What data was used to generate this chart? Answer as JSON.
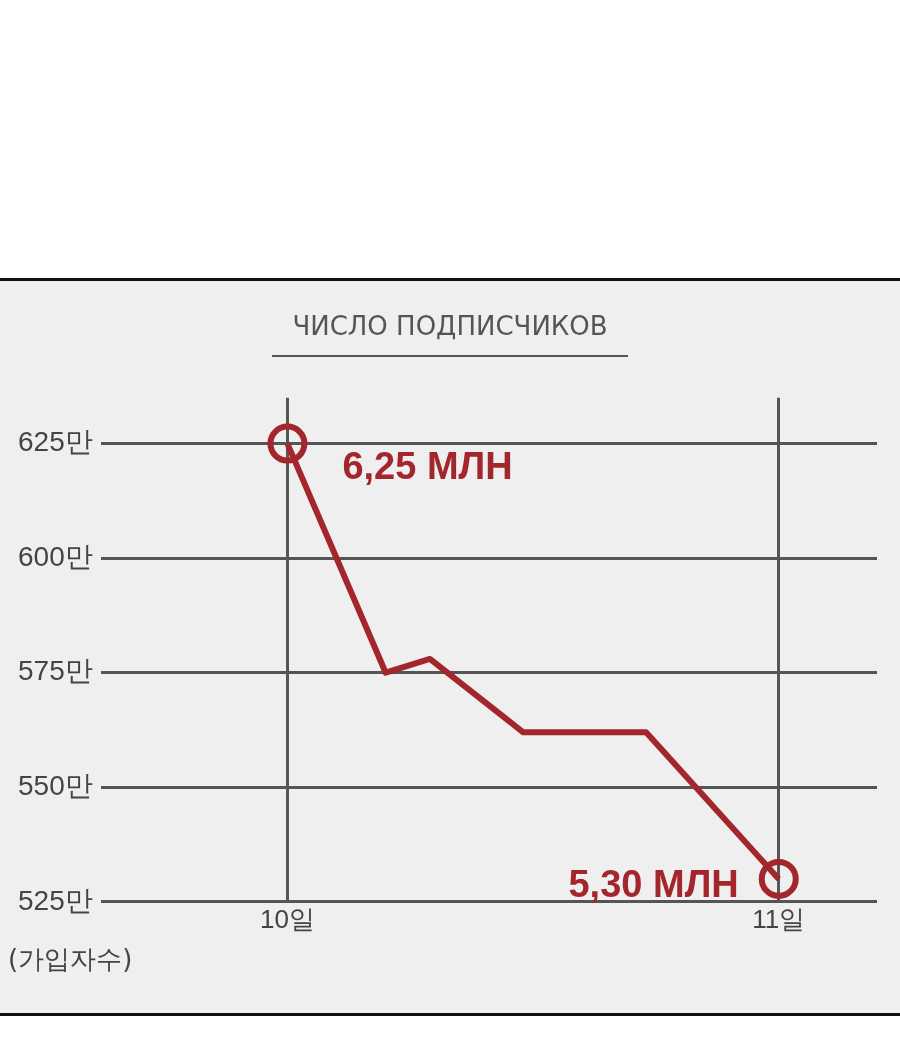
{
  "chart_data": {
    "type": "line",
    "title": "ЧИСЛО ПОДПИСЧИКОВ",
    "ylabel": "(가입자수)",
    "x": [
      10,
      10.2,
      10.29,
      10.48,
      10.73,
      11
    ],
    "series": [
      {
        "color": "#a3262c",
        "values": [
          625,
          575,
          578,
          562,
          562,
          530
        ],
        "marker": "none"
      },
      {
        "type": "scatter",
        "x": [
          10,
          11
        ],
        "color": "#a3262c",
        "values": [
          625,
          530
        ],
        "marker": "circle"
      }
    ],
    "annotations": [
      {
        "text": "6,25 МЛН",
        "x": 10,
        "y": 625
      },
      {
        "text": "5,30 МЛН",
        "x": 11,
        "y": 530
      }
    ],
    "xlim": [
      9.62,
      11.2
    ],
    "xticks": [
      {
        "value": 10,
        "label": "10일"
      },
      {
        "value": 11,
        "label": "11일"
      }
    ],
    "ylim": [
      525,
      635
    ],
    "yticks": [
      {
        "value": 525,
        "label": "525만"
      },
      {
        "value": 550,
        "label": "550만"
      },
      {
        "value": 575,
        "label": "575만"
      },
      {
        "value": 600,
        "label": "600만"
      },
      {
        "value": 625,
        "label": "625만"
      }
    ],
    "grid": true,
    "line_style": "solid",
    "legend": false
  }
}
